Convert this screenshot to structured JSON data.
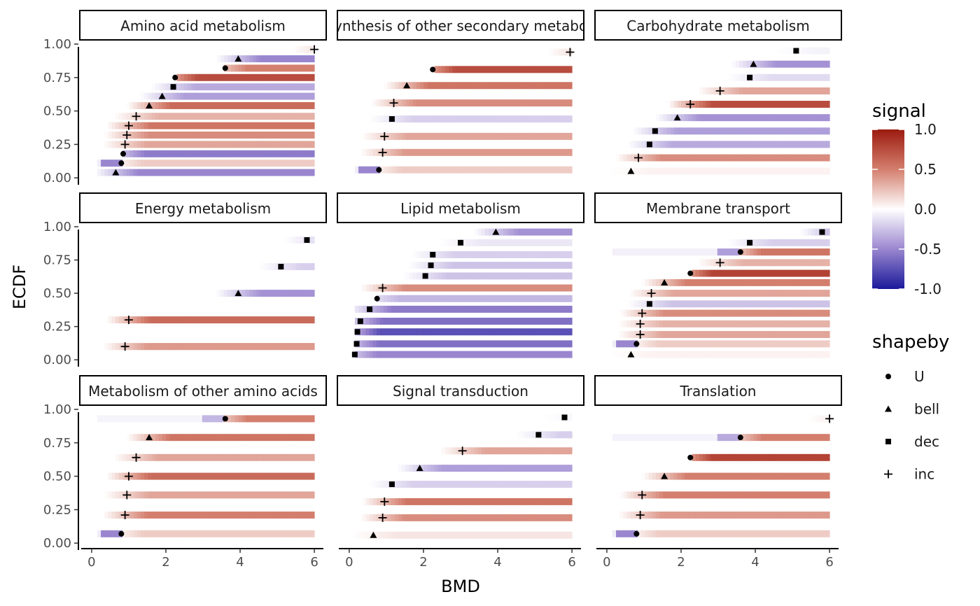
{
  "chart_data": {
    "type": "heatmap",
    "xlabel": "BMD",
    "ylabel": "ECDF",
    "xlim": [
      -0.3,
      6.3
    ],
    "ylim": [
      -0.02,
      1.0
    ],
    "x_ticks": [
      0,
      2,
      4,
      6
    ],
    "y_ticks": [
      "0.00",
      "0.25",
      "0.50",
      "0.75",
      "1.00"
    ],
    "y_tick_values": [
      0,
      0.25,
      0.5,
      0.75,
      1.0
    ],
    "grid": false,
    "legend_position": "right",
    "colorscale": {
      "title": "signal",
      "range": [
        -1,
        1
      ],
      "ticks": [
        "1.0",
        "0.5",
        "0.0",
        "-0.5",
        "-1.0"
      ],
      "tick_values": [
        1,
        0.5,
        0,
        -0.5,
        -1
      ],
      "low_color": "#1a1a9a",
      "mid_color": "#ffffff",
      "high_color": "#9b1b0f"
    },
    "shape_legend": {
      "title": "shapeby",
      "items": [
        {
          "label": "U",
          "shape": "circle"
        },
        {
          "label": "bell",
          "shape": "triangle"
        },
        {
          "label": "dec",
          "shape": "square"
        },
        {
          "label": "inc",
          "shape": "plus"
        }
      ]
    },
    "panels": [
      {
        "title": "Amino acid metabolism",
        "rows": [
          {
            "y": 0.04,
            "bmd": 0.65,
            "shape": "bell",
            "left": 0.0,
            "right": -0.5
          },
          {
            "y": 0.11,
            "bmd": 0.8,
            "shape": "U",
            "left": -0.5,
            "right": 0.2
          },
          {
            "y": 0.18,
            "bmd": 0.85,
            "shape": "U",
            "left": 0.0,
            "right": -0.55
          },
          {
            "y": 0.25,
            "bmd": 0.9,
            "shape": "inc",
            "left": 0.0,
            "right": 0.35
          },
          {
            "y": 0.32,
            "bmd": 0.95,
            "shape": "inc",
            "left": 0.0,
            "right": 0.45
          },
          {
            "y": 0.39,
            "bmd": 1.0,
            "shape": "inc",
            "left": 0.0,
            "right": 0.55
          },
          {
            "y": 0.46,
            "bmd": 1.2,
            "shape": "inc",
            "left": 0.0,
            "right": 0.3
          },
          {
            "y": 0.54,
            "bmd": 1.55,
            "shape": "bell",
            "left": 0.0,
            "right": 0.6
          },
          {
            "y": 0.61,
            "bmd": 1.9,
            "shape": "bell",
            "left": 0.0,
            "right": -0.4
          },
          {
            "y": 0.68,
            "bmd": 2.2,
            "shape": "dec",
            "left": 0.0,
            "right": -0.35
          },
          {
            "y": 0.75,
            "bmd": 2.25,
            "shape": "U",
            "left": 0.0,
            "right": 0.75
          },
          {
            "y": 0.82,
            "bmd": 3.6,
            "shape": "U",
            "left": 0.0,
            "right": 0.5
          },
          {
            "y": 0.89,
            "bmd": 3.95,
            "shape": "bell",
            "left": 0.0,
            "right": -0.5
          },
          {
            "y": 0.96,
            "bmd": 6.0,
            "shape": "inc",
            "left": 0.0,
            "right": 0.2
          }
        ]
      },
      {
        "title": "Biosynthesis of other secondary metabolites",
        "rows": [
          {
            "y": 0.06,
            "bmd": 0.8,
            "shape": "U",
            "left": -0.5,
            "right": 0.2
          },
          {
            "y": 0.19,
            "bmd": 0.9,
            "shape": "inc",
            "left": 0.0,
            "right": 0.4
          },
          {
            "y": 0.31,
            "bmd": 0.95,
            "shape": "inc",
            "left": 0.0,
            "right": 0.35
          },
          {
            "y": 0.44,
            "bmd": 1.15,
            "shape": "dec",
            "left": 0.0,
            "right": -0.2
          },
          {
            "y": 0.56,
            "bmd": 1.2,
            "shape": "inc",
            "left": 0.0,
            "right": 0.45
          },
          {
            "y": 0.69,
            "bmd": 1.55,
            "shape": "bell",
            "left": 0.0,
            "right": 0.55
          },
          {
            "y": 0.81,
            "bmd": 2.25,
            "shape": "U",
            "left": 0.0,
            "right": 0.75
          },
          {
            "y": 0.94,
            "bmd": 5.95,
            "shape": "inc",
            "left": 0.0,
            "right": 0.2
          }
        ]
      },
      {
        "title": "Carbohydrate metabolism",
        "rows": [
          {
            "y": 0.05,
            "bmd": 0.65,
            "shape": "bell",
            "left": 0.0,
            "right": 0.05
          },
          {
            "y": 0.15,
            "bmd": 0.85,
            "shape": "inc",
            "left": 0.0,
            "right": 0.45
          },
          {
            "y": 0.25,
            "bmd": 1.15,
            "shape": "dec",
            "left": 0.0,
            "right": -0.35
          },
          {
            "y": 0.35,
            "bmd": 1.3,
            "shape": "dec",
            "left": 0.0,
            "right": -0.4
          },
          {
            "y": 0.45,
            "bmd": 1.9,
            "shape": "bell",
            "left": 0.0,
            "right": -0.45
          },
          {
            "y": 0.55,
            "bmd": 2.25,
            "shape": "inc",
            "left": 0.0,
            "right": 0.75
          },
          {
            "y": 0.65,
            "bmd": 3.05,
            "shape": "inc",
            "left": 0.0,
            "right": 0.35
          },
          {
            "y": 0.75,
            "bmd": 3.85,
            "shape": "dec",
            "left": 0.0,
            "right": -0.15
          },
          {
            "y": 0.85,
            "bmd": 3.95,
            "shape": "bell",
            "left": 0.0,
            "right": -0.45
          },
          {
            "y": 0.95,
            "bmd": 5.1,
            "shape": "dec",
            "left": 0.0,
            "right": -0.05
          }
        ]
      },
      {
        "title": "Energy metabolism",
        "rows": [
          {
            "y": 0.1,
            "bmd": 0.9,
            "shape": "inc",
            "left": 0.0,
            "right": 0.4
          },
          {
            "y": 0.3,
            "bmd": 1.0,
            "shape": "inc",
            "left": 0.0,
            "right": 0.6
          },
          {
            "y": 0.5,
            "bmd": 3.95,
            "shape": "bell",
            "left": 0.0,
            "right": -0.45
          },
          {
            "y": 0.7,
            "bmd": 5.1,
            "shape": "dec",
            "left": 0.0,
            "right": -0.2
          },
          {
            "y": 0.9,
            "bmd": 5.8,
            "shape": "dec",
            "left": 0.0,
            "right": -0.2
          }
        ]
      },
      {
        "title": "Lipid metabolism",
        "rows": [
          {
            "y": 0.04,
            "bmd": 0.15,
            "shape": "dec",
            "left": 0.0,
            "right": -0.5
          },
          {
            "y": 0.12,
            "bmd": 0.2,
            "shape": "dec",
            "left": 0.0,
            "right": -0.6
          },
          {
            "y": 0.21,
            "bmd": 0.22,
            "shape": "dec",
            "left": 0.0,
            "right": -0.75
          },
          {
            "y": 0.29,
            "bmd": 0.3,
            "shape": "dec",
            "left": 0.0,
            "right": -0.6
          },
          {
            "y": 0.38,
            "bmd": 0.55,
            "shape": "dec",
            "left": 0.0,
            "right": -0.55
          },
          {
            "y": 0.46,
            "bmd": 0.75,
            "shape": "U",
            "left": 0.0,
            "right": -0.3
          },
          {
            "y": 0.54,
            "bmd": 0.9,
            "shape": "inc",
            "left": 0.0,
            "right": 0.45
          },
          {
            "y": 0.63,
            "bmd": 2.05,
            "shape": "dec",
            "left": 0.0,
            "right": -0.25
          },
          {
            "y": 0.71,
            "bmd": 2.2,
            "shape": "dec",
            "left": 0.0,
            "right": -0.25
          },
          {
            "y": 0.79,
            "bmd": 2.25,
            "shape": "dec",
            "left": 0.0,
            "right": -0.2
          },
          {
            "y": 0.88,
            "bmd": 3.0,
            "shape": "dec",
            "left": 0.0,
            "right": -0.1
          },
          {
            "y": 0.96,
            "bmd": 3.95,
            "shape": "bell",
            "left": 0.0,
            "right": -0.45
          }
        ]
      },
      {
        "title": "Membrane transport",
        "rows": [
          {
            "y": 0.04,
            "bmd": 0.65,
            "shape": "bell",
            "left": 0.0,
            "right": 0.05
          },
          {
            "y": 0.12,
            "bmd": 0.8,
            "shape": "U",
            "left": -0.5,
            "right": 0.2
          },
          {
            "y": 0.19,
            "bmd": 0.9,
            "shape": "inc",
            "left": 0.0,
            "right": 0.35
          },
          {
            "y": 0.27,
            "bmd": 0.9,
            "shape": "inc",
            "left": 0.0,
            "right": 0.3
          },
          {
            "y": 0.35,
            "bmd": 0.95,
            "shape": "inc",
            "left": 0.0,
            "right": 0.45
          },
          {
            "y": 0.42,
            "bmd": 1.15,
            "shape": "dec",
            "left": 0.0,
            "right": -0.25
          },
          {
            "y": 0.5,
            "bmd": 1.2,
            "shape": "inc",
            "left": 0.0,
            "right": 0.35
          },
          {
            "y": 0.58,
            "bmd": 1.55,
            "shape": "bell",
            "left": 0.0,
            "right": 0.5
          },
          {
            "y": 0.65,
            "bmd": 2.25,
            "shape": "U",
            "left": 0.0,
            "right": 0.8
          },
          {
            "y": 0.73,
            "bmd": 3.05,
            "shape": "inc",
            "left": 0.0,
            "right": 0.3
          },
          {
            "y": 0.81,
            "bmd": 3.6,
            "shape": "U",
            "left": -0.4,
            "right": 0.55
          },
          {
            "y": 0.88,
            "bmd": 3.85,
            "shape": "dec",
            "left": 0.0,
            "right": -0.2
          },
          {
            "y": 0.96,
            "bmd": 5.8,
            "shape": "dec",
            "left": 0.0,
            "right": -0.4
          }
        ]
      },
      {
        "title": "Metabolism of other amino acids",
        "rows": [
          {
            "y": 0.07,
            "bmd": 0.8,
            "shape": "U",
            "left": -0.5,
            "right": 0.2
          },
          {
            "y": 0.21,
            "bmd": 0.9,
            "shape": "inc",
            "left": 0.0,
            "right": 0.5
          },
          {
            "y": 0.36,
            "bmd": 0.95,
            "shape": "inc",
            "left": 0.0,
            "right": 0.35
          },
          {
            "y": 0.5,
            "bmd": 1.0,
            "shape": "inc",
            "left": 0.0,
            "right": 0.6
          },
          {
            "y": 0.64,
            "bmd": 1.2,
            "shape": "inc",
            "left": 0.0,
            "right": 0.35
          },
          {
            "y": 0.79,
            "bmd": 1.55,
            "shape": "bell",
            "left": 0.0,
            "right": 0.55
          },
          {
            "y": 0.93,
            "bmd": 3.6,
            "shape": "U",
            "left": -0.3,
            "right": 0.5
          }
        ]
      },
      {
        "title": "Signal transduction",
        "rows": [
          {
            "y": 0.06,
            "bmd": 0.65,
            "shape": "bell",
            "left": 0.0,
            "right": 0.1
          },
          {
            "y": 0.19,
            "bmd": 0.9,
            "shape": "inc",
            "left": 0.0,
            "right": 0.45
          },
          {
            "y": 0.31,
            "bmd": 0.95,
            "shape": "inc",
            "left": 0.0,
            "right": 0.55
          },
          {
            "y": 0.44,
            "bmd": 1.15,
            "shape": "dec",
            "left": 0.0,
            "right": -0.2
          },
          {
            "y": 0.56,
            "bmd": 1.9,
            "shape": "bell",
            "left": 0.0,
            "right": -0.4
          },
          {
            "y": 0.69,
            "bmd": 3.05,
            "shape": "inc",
            "left": 0.0,
            "right": 0.35
          },
          {
            "y": 0.81,
            "bmd": 5.1,
            "shape": "dec",
            "left": 0.0,
            "right": -0.2
          },
          {
            "y": 0.94,
            "bmd": 5.8,
            "shape": "dec",
            "left": 0.0,
            "right": -0.05
          }
        ]
      },
      {
        "title": "Translation",
        "rows": [
          {
            "y": 0.07,
            "bmd": 0.8,
            "shape": "U",
            "left": -0.5,
            "right": 0.2
          },
          {
            "y": 0.21,
            "bmd": 0.9,
            "shape": "inc",
            "left": 0.0,
            "right": 0.4
          },
          {
            "y": 0.36,
            "bmd": 0.95,
            "shape": "inc",
            "left": 0.0,
            "right": 0.5
          },
          {
            "y": 0.5,
            "bmd": 1.55,
            "shape": "bell",
            "left": 0.0,
            "right": 0.5
          },
          {
            "y": 0.64,
            "bmd": 2.25,
            "shape": "U",
            "left": 0.0,
            "right": 0.8
          },
          {
            "y": 0.79,
            "bmd": 3.6,
            "shape": "U",
            "left": -0.35,
            "right": 0.5
          },
          {
            "y": 0.93,
            "bmd": 6.0,
            "shape": "inc",
            "left": 0.0,
            "right": 0.1
          }
        ]
      }
    ]
  }
}
